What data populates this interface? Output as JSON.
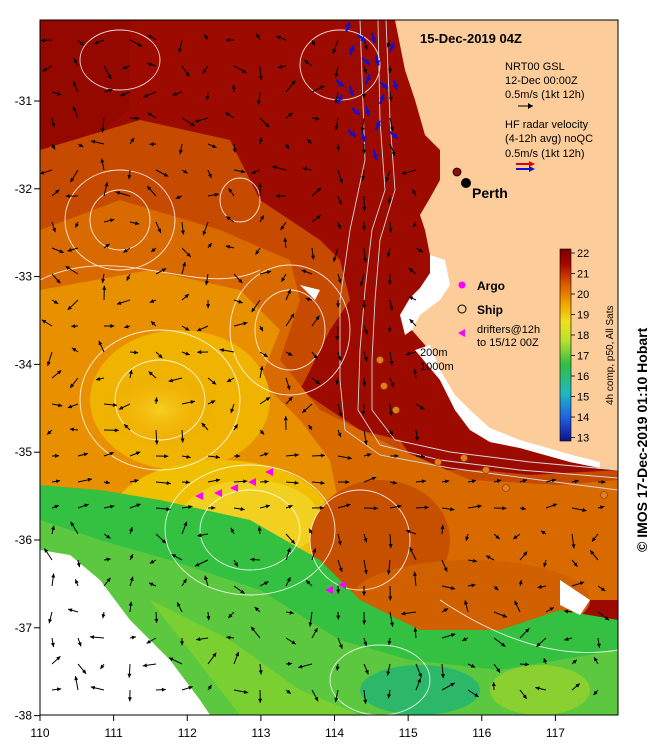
{
  "title": "15-Dec-2019 04Z",
  "legend": {
    "model_line1": "NRT00 GSL",
    "model_line2": "12-Dec 00:00Z",
    "model_line3": "0.5m/s (1kt 12h)",
    "radar_line1": "HF radar velocity",
    "radar_line2": "(4-12h avg) noQC",
    "radar_line3": "0.5m/s (1kt 12h)",
    "argo": "Argo",
    "ship": "Ship",
    "drifters_line1": "drifters@12h",
    "drifters_line2": "to 15/12 00Z",
    "isobath1": "200m",
    "isobath2": "1000m"
  },
  "places": {
    "perth": "Perth"
  },
  "colorbar": {
    "label": "4h comp, p50, All Sats",
    "ticks": [
      "22",
      "21",
      "20",
      "19",
      "18",
      "17",
      "16",
      "15",
      "14",
      "13"
    ],
    "colors": [
      "#7a0000",
      "#a60000",
      "#c83a00",
      "#e07800",
      "#f0b000",
      "#f0e020",
      "#a8e030",
      "#30c040",
      "#20b0b0",
      "#2070e0",
      "#1010a0"
    ]
  },
  "axes": {
    "x_ticks": [
      "110",
      "111",
      "112",
      "113",
      "114",
      "115",
      "116",
      "117"
    ],
    "y_ticks": [
      "-31",
      "-32",
      "-33",
      "-34",
      "-35",
      "-36",
      "-37",
      "-38"
    ]
  },
  "credit": "© IMOS 17-Dec-2019 01:10 Hobart",
  "colors": {
    "land": "#fccc9a",
    "warm": "#9c0a00",
    "mid": "#e07800",
    "cool": "#34c040",
    "argo": "#ff00ff",
    "radar_arrow": "#1010d0"
  }
}
